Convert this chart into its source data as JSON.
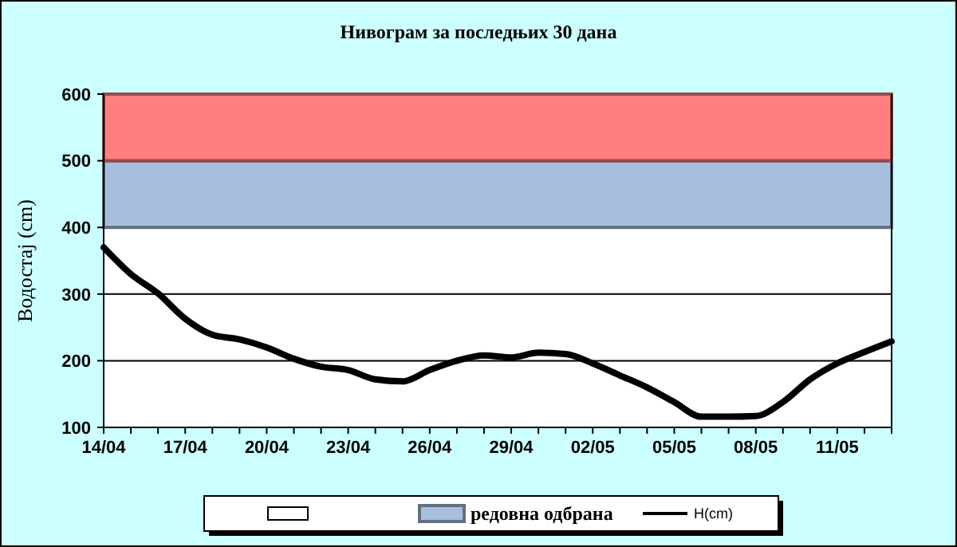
{
  "chart_data": {
    "type": "line",
    "title": "Нивограм за последњих 30 дана",
    "ylabel": "Водостај (cm)",
    "categories": [
      "14/04",
      null,
      null,
      "17/04",
      null,
      null,
      "20/04",
      null,
      null,
      "23/04",
      null,
      null,
      "26/04",
      null,
      null,
      "29/04",
      null,
      null,
      "02/05",
      null,
      null,
      "05/05",
      null,
      null,
      "08/05",
      null,
      null,
      "11/05",
      null,
      null
    ],
    "series": [
      {
        "name": "H(cm)",
        "color": "#000000",
        "values": [
          370,
          330,
          301,
          263,
          239,
          232,
          220,
          203,
          191,
          186,
          172,
          169,
          186,
          200,
          208,
          205,
          212,
          210,
          196,
          178,
          160,
          138,
          116,
          116,
          117,
          138,
          172,
          196,
          213,
          229
        ]
      }
    ],
    "ylim": [
      100,
      600
    ],
    "yticks": [
      100,
      200,
      300,
      400,
      500,
      600
    ],
    "grid": "y",
    "legend": "bottom",
    "marker": "none",
    "line_style": "solid",
    "bands": [
      {
        "axis": "y",
        "from": 400,
        "to": 500,
        "label": "редовна одбрана",
        "color": "#a7bfdc"
      },
      {
        "axis": "y",
        "from": 500,
        "to": 600,
        "color": "#ff7f7f"
      }
    ]
  }
}
